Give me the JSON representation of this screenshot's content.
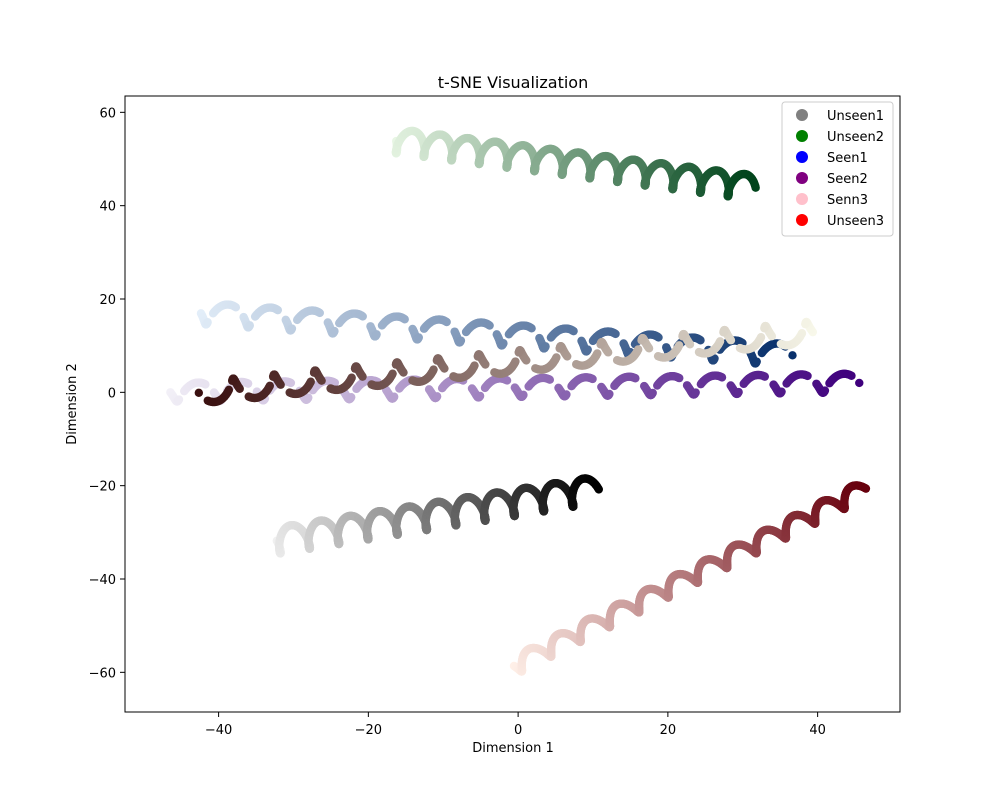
{
  "chart_data": {
    "type": "scatter",
    "title": "t-SNE Visualization",
    "xlabel": "Dimension 1",
    "ylabel": "Dimension 2",
    "xlim": [
      -52.5,
      51
    ],
    "ylim": [
      -68.5,
      63.5
    ],
    "xticks": [
      -40,
      -20,
      0,
      20,
      40
    ],
    "yticks": [
      -60,
      -40,
      -20,
      0,
      20,
      40,
      60
    ],
    "xtick_labels": [
      "−40",
      "−20",
      "0",
      "20",
      "40"
    ],
    "ytick_labels": [
      "−60",
      "−40",
      "−20",
      "0",
      "20",
      "40",
      "60"
    ],
    "grid": false,
    "legend_position": "top-right",
    "legend": [
      {
        "label": "Unseen1",
        "color": "#808080"
      },
      {
        "label": "Unseen2",
        "color": "#008000"
      },
      {
        "label": "Seen1",
        "color": "#0000ff"
      },
      {
        "label": "Seen2",
        "color": "#800080"
      },
      {
        "label": "Senn3",
        "color": "#ffc0cb"
      },
      {
        "label": "Unseen3",
        "color": "#ff0000"
      }
    ],
    "series": [
      {
        "colormap": "Greys",
        "color_from": "#f0f0f0",
        "color_to": "#000000",
        "x_start": -33,
        "x_end": 10,
        "y_start": -32,
        "y_end": -21,
        "amplitude": 2.8,
        "waves": 11,
        "pattern": "wavy"
      },
      {
        "colormap": "Greens",
        "color_from": "#e8f6e4",
        "color_to": "#00441b",
        "x_start": -17,
        "x_end": 31,
        "y_start": 54,
        "y_end": 44,
        "amplitude": 2.6,
        "waves": 13,
        "pattern": "wavy"
      },
      {
        "colormap": "Blues",
        "color_from": "#e3eef9",
        "color_to": "#08306b",
        "x_start": -43,
        "x_end": 36,
        "y_start": 17,
        "y_end": 8,
        "amplitude": 2.3,
        "waves": 14,
        "pattern": "segmented"
      },
      {
        "colormap": "Purples",
        "color_from": "#f2f0f7",
        "color_to": "#3f007d",
        "x_start": -47,
        "x_end": 45,
        "y_start": 0,
        "y_end": 2,
        "amplitude": 2.0,
        "waves": 16,
        "pattern": "segmented"
      },
      {
        "colormap": "pink",
        "color_from": "#f8f8ea",
        "color_to": "#3a1010",
        "x_start": 40,
        "x_end": -42,
        "y_start": 13,
        "y_end": 0,
        "amplitude": 2.3,
        "waves": 15,
        "pattern": "segmented"
      },
      {
        "colormap": "Reds",
        "color_from": "#fff0e8",
        "color_to": "#67000d",
        "x_start": -1,
        "x_end": 46,
        "y_start": -59,
        "y_end": -21,
        "amplitude": 1.8,
        "waves": 12,
        "pattern": "wavy"
      }
    ]
  }
}
